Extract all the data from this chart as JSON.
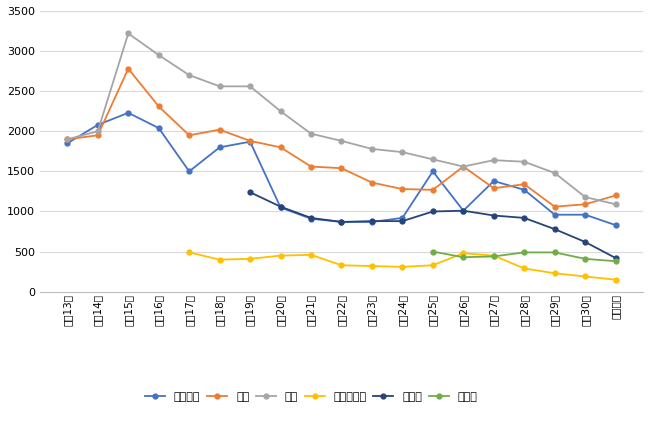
{
  "years": [
    "平成13年",
    "平成14年",
    "平成15年",
    "平成16年",
    "平成17年",
    "平成18年",
    "平成19年",
    "平成20年",
    "平成21年",
    "平成22年",
    "平成23年",
    "平成24年",
    "平成25年",
    "平成26年",
    "平成27年",
    "平成28年",
    "平成29年",
    "平成30年",
    "令和元年"
  ],
  "series": {
    "歌舞伎町": [
      1850,
      2080,
      2230,
      2040,
      1500,
      1800,
      1870,
      1050,
      910,
      870,
      870,
      920,
      1500,
      1010,
      1380,
      1270,
      960,
      960,
      830
    ],
    "渋谷": [
      1900,
      1950,
      2780,
      2310,
      1950,
      2020,
      1880,
      1800,
      1560,
      1540,
      1360,
      1280,
      1270,
      1560,
      1290,
      1340,
      1060,
      1090,
      1200
    ],
    "池袋": [
      1900,
      2000,
      3220,
      2950,
      2700,
      2560,
      2560,
      2250,
      1970,
      1880,
      1780,
      1740,
      1650,
      1560,
      1640,
      1620,
      1480,
      1180,
      1090
    ],
    "上野２丁目": [
      null,
      null,
      null,
      null,
      490,
      400,
      410,
      450,
      460,
      330,
      320,
      310,
      330,
      480,
      450,
      290,
      230,
      190,
      150
    ],
    "六本木": [
      null,
      null,
      null,
      null,
      null,
      null,
      1240,
      1060,
      920,
      870,
      880,
      880,
      1000,
      1010,
      950,
      920,
      780,
      620,
      420
    ],
    "錦糸町": [
      null,
      null,
      null,
      null,
      null,
      null,
      null,
      null,
      null,
      null,
      null,
      null,
      500,
      430,
      440,
      490,
      490,
      410,
      380
    ]
  },
  "legend_labels": [
    "歌舞伎町",
    "渋谷",
    "池袋",
    "上野２丁目",
    "六本木",
    "錦糸町"
  ],
  "colors": {
    "歌舞伎町": "#4472C4",
    "渋谷": "#ED7D31",
    "池袋": "#A5A5A5",
    "上野２丁目": "#FFC000",
    "六本木": "#264478",
    "錦糸町": "#70AD47"
  },
  "ylim": [
    0,
    3500
  ],
  "yticks": [
    0,
    500,
    1000,
    1500,
    2000,
    2500,
    3000,
    3500
  ],
  "bg_color": "#FFFFFF",
  "grid_color": "#D9D9D9"
}
